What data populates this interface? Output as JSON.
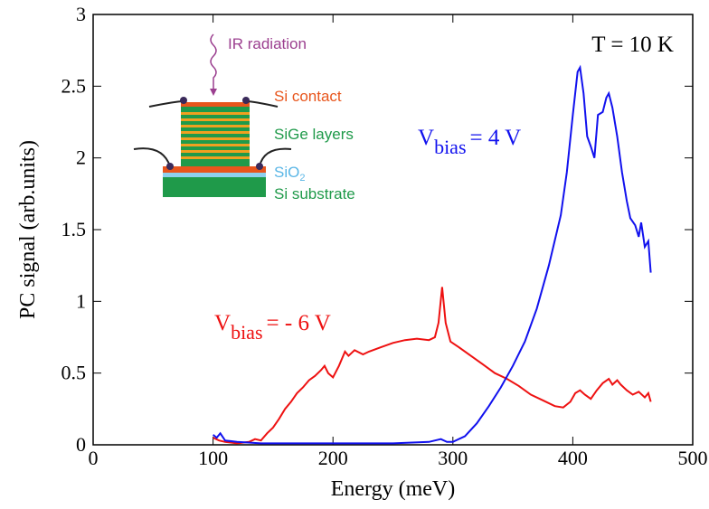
{
  "chart_data": {
    "type": "line",
    "x_label": "Energy (meV)",
    "y_label": "PC signal (arb.units)",
    "xlim": [
      0,
      500
    ],
    "ylim": [
      0,
      3
    ],
    "xticks": [
      0,
      100,
      200,
      300,
      400,
      500
    ],
    "yticks": [
      0,
      0.5,
      1,
      1.5,
      2,
      2.5,
      3
    ],
    "series": [
      {
        "color": "#ee1111",
        "x": [
          100,
          105,
          110,
          120,
          130,
          135,
          140,
          145,
          150,
          155,
          160,
          165,
          170,
          175,
          180,
          185,
          190,
          193,
          196,
          200,
          205,
          210,
          213,
          218,
          225,
          230,
          240,
          250,
          260,
          270,
          280,
          285,
          288,
          291,
          294,
          298,
          305,
          315,
          325,
          335,
          345,
          355,
          365,
          375,
          385,
          392,
          398,
          402,
          406,
          410,
          415,
          420,
          425,
          430,
          433,
          437,
          440,
          445,
          450,
          455,
          460,
          463,
          465
        ],
        "values": [
          0.05,
          0.03,
          0.02,
          0.01,
          0.02,
          0.04,
          0.03,
          0.08,
          0.12,
          0.18,
          0.25,
          0.3,
          0.36,
          0.4,
          0.45,
          0.48,
          0.52,
          0.55,
          0.5,
          0.47,
          0.55,
          0.65,
          0.62,
          0.66,
          0.63,
          0.65,
          0.68,
          0.71,
          0.73,
          0.74,
          0.73,
          0.75,
          0.85,
          1.1,
          0.85,
          0.72,
          0.68,
          0.62,
          0.56,
          0.5,
          0.46,
          0.41,
          0.35,
          0.31,
          0.27,
          0.26,
          0.3,
          0.36,
          0.38,
          0.35,
          0.32,
          0.38,
          0.43,
          0.46,
          0.42,
          0.45,
          0.42,
          0.38,
          0.35,
          0.37,
          0.33,
          0.36,
          0.3
        ]
      },
      {
        "color": "#1111ee",
        "x": [
          100,
          103,
          106,
          110,
          120,
          140,
          160,
          200,
          250,
          280,
          290,
          295,
          300,
          310,
          320,
          330,
          340,
          350,
          360,
          370,
          380,
          390,
          395,
          400,
          404,
          406,
          409,
          412,
          415,
          418,
          421,
          425,
          428,
          430,
          433,
          437,
          441,
          445,
          448,
          452,
          455,
          457,
          460,
          463,
          465
        ],
        "values": [
          0.07,
          0.05,
          0.08,
          0.03,
          0.02,
          0.01,
          0.01,
          0.01,
          0.01,
          0.02,
          0.04,
          0.02,
          0.02,
          0.06,
          0.15,
          0.27,
          0.4,
          0.55,
          0.72,
          0.95,
          1.25,
          1.6,
          1.9,
          2.3,
          2.6,
          2.63,
          2.45,
          2.15,
          2.08,
          2.0,
          2.3,
          2.32,
          2.42,
          2.45,
          2.35,
          2.15,
          1.9,
          1.7,
          1.58,
          1.53,
          1.45,
          1.55,
          1.38,
          1.42,
          1.2
        ]
      }
    ],
    "annotations": [
      {
        "text": "T = 10 K",
        "color": "#000000"
      },
      {
        "text": "V",
        "sub": "bias",
        "tail": "= 4 V",
        "color": "#1111ee"
      },
      {
        "text": "V",
        "sub": "bias",
        "tail": "= - 6 V",
        "color": "#ee1111"
      }
    ]
  },
  "inset": {
    "labels": [
      {
        "text": "IR radiation",
        "color": "#9b3f8f"
      },
      {
        "text": "Si contact",
        "color": "#e8551c"
      },
      {
        "text": "SiGe layers",
        "color": "#1f9a4a"
      },
      {
        "text": "SiO",
        "sub": "2",
        "color": "#5ab6e6"
      },
      {
        "text": "Si substrate",
        "color": "#1f9a4a"
      }
    ]
  }
}
